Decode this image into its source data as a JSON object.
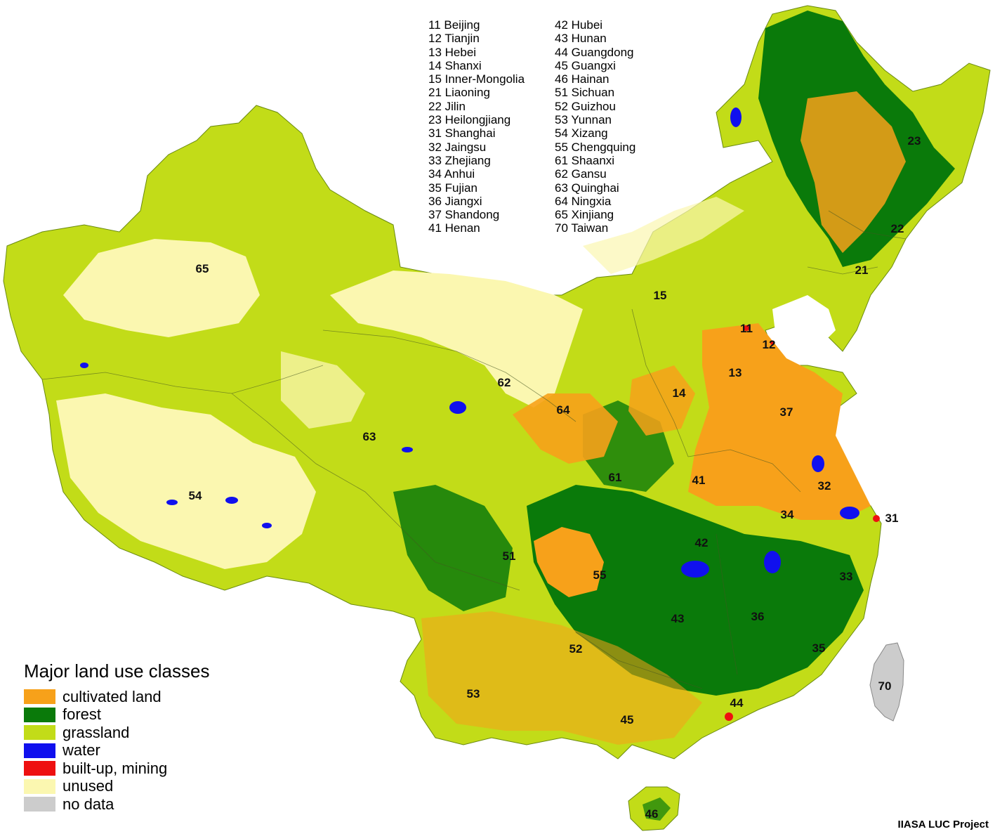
{
  "province_list": {
    "column1": [
      "11 Beijing",
      "12 Tianjin",
      "13 Hebei",
      "14 Shanxi",
      "15 Inner-Mongolia",
      "21 Liaoning",
      "22 Jilin",
      "23 Heilongjiang",
      "31 Shanghai",
      "32 Jaingsu",
      "33 Zhejiang",
      "34 Anhui",
      "35 Fujian",
      "36 Jiangxi",
      "37 Shandong",
      "41 Henan"
    ],
    "column2": [
      "42 Hubei",
      "43 Hunan",
      "44 Guangdong",
      "45 Guangxi",
      "46 Hainan",
      "51 Sichuan",
      "52 Guizhou",
      "53 Yunnan",
      "54 Xizang",
      "55 Chengquing",
      "61 Shaanxi",
      "62 Gansu",
      "63 Quinghai",
      "64 Ningxia",
      "65 Xinjiang",
      "70 Taiwan"
    ]
  },
  "map_labels": [
    {
      "code": "11"
    },
    {
      "code": "12"
    },
    {
      "code": "13"
    },
    {
      "code": "14"
    },
    {
      "code": "15"
    },
    {
      "code": "21"
    },
    {
      "code": "22"
    },
    {
      "code": "23"
    },
    {
      "code": "31"
    },
    {
      "code": "32"
    },
    {
      "code": "33"
    },
    {
      "code": "34"
    },
    {
      "code": "35"
    },
    {
      "code": "36"
    },
    {
      "code": "37"
    },
    {
      "code": "41"
    },
    {
      "code": "42"
    },
    {
      "code": "43"
    },
    {
      "code": "44"
    },
    {
      "code": "45"
    },
    {
      "code": "46"
    },
    {
      "code": "51"
    },
    {
      "code": "52"
    },
    {
      "code": "53"
    },
    {
      "code": "54"
    },
    {
      "code": "55"
    },
    {
      "code": "61"
    },
    {
      "code": "62"
    },
    {
      "code": "63"
    },
    {
      "code": "64"
    },
    {
      "code": "65"
    },
    {
      "code": "70"
    }
  ],
  "legend": {
    "title": "Major land use classes",
    "items": [
      {
        "label": "cultivated land",
        "color": "#f7a11a"
      },
      {
        "label": "forest",
        "color": "#0a7a0a"
      },
      {
        "label": "grassland",
        "color": "#c2dc18"
      },
      {
        "label": "water",
        "color": "#1010ee"
      },
      {
        "label": "built-up, mining",
        "color": "#ee1010"
      },
      {
        "label": "unused",
        "color": "#fbf7b0"
      },
      {
        "label": "no data",
        "color": "#cccccc"
      }
    ]
  },
  "credit": "IIASA LUC Project"
}
